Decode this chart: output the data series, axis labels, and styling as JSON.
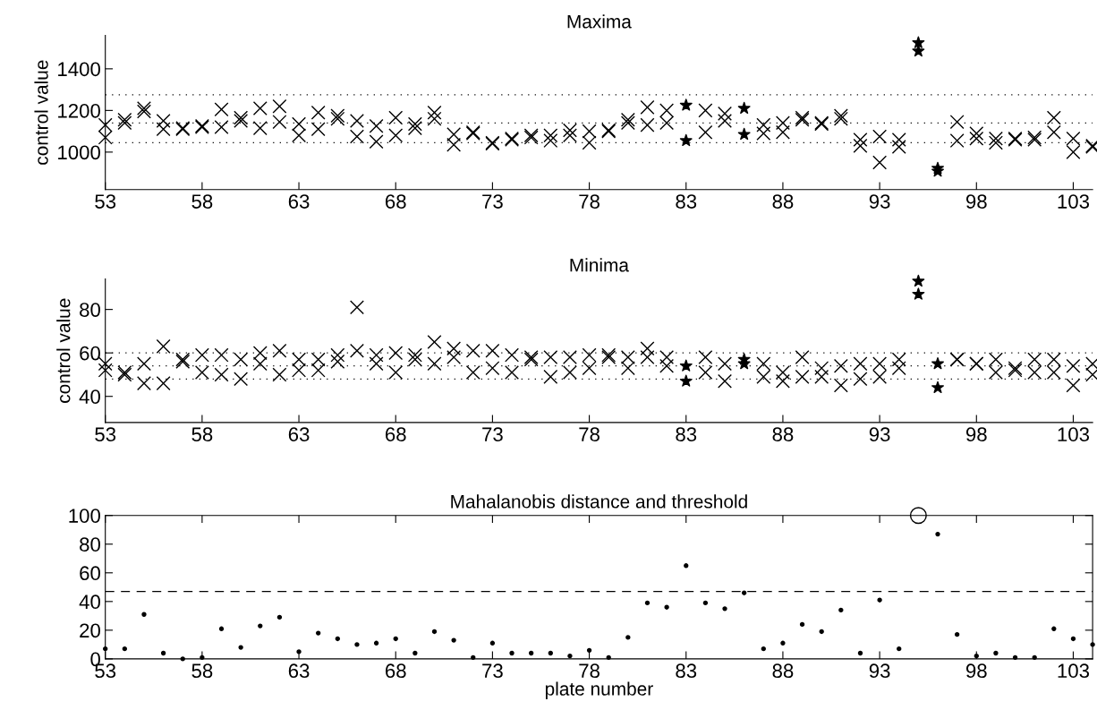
{
  "chart_data": [
    {
      "type": "scatter",
      "title": "Maxima",
      "ylabel": "control value",
      "xlim": [
        53,
        104
      ],
      "xticks": [
        53,
        58,
        63,
        68,
        73,
        78,
        83,
        88,
        93,
        98,
        103
      ],
      "ylim": [
        820,
        1560
      ],
      "yticks": [
        1000,
        1200,
        1400
      ],
      "ref_lines": [
        {
          "axis": "y",
          "value": 1275,
          "line_style": "dotted"
        },
        {
          "axis": "y",
          "value": 1140,
          "line_style": "dotted"
        },
        {
          "axis": "y",
          "value": 1045,
          "line_style": "dotted"
        }
      ],
      "series": [
        {
          "marker": "cross",
          "color": "#000000",
          "x": [
            53,
            53,
            54,
            54,
            55,
            55,
            56,
            56,
            57,
            57,
            58,
            58,
            59,
            59,
            60,
            60,
            61,
            61,
            62,
            62,
            63,
            63,
            64,
            64,
            65,
            65,
            66,
            66,
            67,
            67,
            68,
            68,
            69,
            69,
            70,
            70,
            71,
            71,
            72,
            72,
            73,
            73,
            74,
            74,
            75,
            75,
            76,
            76,
            77,
            77,
            78,
            78,
            79,
            79,
            80,
            80,
            81,
            81,
            82,
            82,
            84,
            84,
            85,
            85,
            87,
            87,
            88,
            88,
            89,
            89,
            90,
            90,
            91,
            91,
            92,
            92,
            93,
            93,
            94,
            94,
            97,
            97,
            98,
            98,
            99,
            99,
            100,
            100,
            101,
            101,
            102,
            102,
            103,
            103,
            104,
            104
          ],
          "values": [
            1130,
            1070,
            1155,
            1140,
            1210,
            1195,
            1150,
            1110,
            1115,
            1110,
            1125,
            1120,
            1205,
            1120,
            1165,
            1150,
            1210,
            1115,
            1220,
            1145,
            1135,
            1080,
            1190,
            1110,
            1175,
            1160,
            1150,
            1075,
            1125,
            1050,
            1165,
            1080,
            1135,
            1115,
            1190,
            1160,
            1085,
            1035,
            1095,
            1090,
            1045,
            1040,
            1065,
            1060,
            1080,
            1070,
            1080,
            1055,
            1105,
            1080,
            1100,
            1045,
            1105,
            1100,
            1155,
            1140,
            1215,
            1130,
            1200,
            1140,
            1200,
            1095,
            1185,
            1150,
            1130,
            1090,
            1140,
            1095,
            1165,
            1155,
            1140,
            1135,
            1175,
            1160,
            1060,
            1030,
            1075,
            950,
            1060,
            1025,
            1145,
            1055,
            1090,
            1065,
            1065,
            1045,
            1065,
            1060,
            1070,
            1060,
            1165,
            1095,
            1065,
            1000,
            1030,
            1025
          ]
        },
        {
          "marker": "star",
          "color": "#000000",
          "x": [
            83,
            83,
            86,
            86,
            95,
            95,
            96,
            96
          ],
          "values": [
            1225,
            1055,
            1210,
            1085,
            1525,
            1485,
            922,
            908
          ]
        }
      ]
    },
    {
      "type": "scatter",
      "title": "Minima",
      "ylabel": "control value",
      "xlim": [
        53,
        104
      ],
      "xticks": [
        53,
        58,
        63,
        68,
        73,
        78,
        83,
        88,
        93,
        98,
        103
      ],
      "ylim": [
        28,
        94
      ],
      "yticks": [
        40,
        60,
        80
      ],
      "ref_lines": [
        {
          "axis": "y",
          "value": 60,
          "line_style": "dotted"
        },
        {
          "axis": "y",
          "value": 54,
          "line_style": "dotted"
        },
        {
          "axis": "y",
          "value": 48,
          "line_style": "dotted"
        }
      ],
      "series": [
        {
          "marker": "cross",
          "color": "#000000",
          "x": [
            53,
            53,
            54,
            54,
            55,
            55,
            56,
            56,
            57,
            57,
            58,
            58,
            59,
            59,
            60,
            60,
            61,
            61,
            62,
            62,
            63,
            63,
            64,
            64,
            65,
            65,
            66,
            66,
            67,
            67,
            68,
            68,
            69,
            69,
            70,
            70,
            71,
            71,
            72,
            72,
            73,
            73,
            74,
            74,
            75,
            75,
            76,
            76,
            77,
            77,
            78,
            78,
            79,
            79,
            80,
            80,
            81,
            81,
            82,
            82,
            84,
            84,
            85,
            85,
            87,
            87,
            88,
            88,
            89,
            89,
            90,
            90,
            91,
            91,
            92,
            92,
            93,
            93,
            94,
            94,
            97,
            97,
            98,
            98,
            99,
            99,
            100,
            100,
            101,
            101,
            102,
            102,
            103,
            103,
            104,
            104
          ],
          "values": [
            55,
            52,
            51,
            50,
            55,
            46,
            63,
            46,
            57,
            56,
            59,
            51,
            59,
            50,
            57,
            48,
            60,
            55,
            61,
            50,
            57,
            52,
            57,
            52,
            59,
            56,
            81,
            61,
            59,
            55,
            60,
            51,
            59,
            57,
            65,
            55,
            62,
            58,
            61,
            51,
            61,
            53,
            59,
            51,
            58,
            57,
            58,
            49,
            58,
            51,
            59,
            53,
            59,
            58,
            58,
            53,
            62,
            58,
            58,
            54,
            58,
            51,
            55,
            47,
            55,
            49,
            51,
            47,
            58,
            49,
            53,
            49,
            54,
            45,
            55,
            48,
            55,
            49,
            57,
            53,
            57,
            57,
            55,
            55,
            57,
            51,
            53,
            52,
            57,
            51,
            57,
            51,
            54,
            45,
            55,
            50
          ]
        },
        {
          "marker": "star",
          "color": "#000000",
          "x": [
            83,
            83,
            86,
            86,
            95,
            95,
            96,
            96
          ],
          "values": [
            54,
            47,
            57,
            55,
            93,
            87,
            55,
            44
          ]
        }
      ]
    },
    {
      "type": "scatter",
      "title": "Mahalanobis distance and threshold",
      "xlabel": "plate number",
      "xlim": [
        53,
        104
      ],
      "xticks": [
        53,
        58,
        63,
        68,
        73,
        78,
        83,
        88,
        93,
        98,
        103
      ],
      "ylim": [
        0,
        100
      ],
      "yticks": [
        0,
        20,
        40,
        60,
        80,
        100
      ],
      "ref_lines": [
        {
          "axis": "y",
          "value": 47,
          "line_style": "dashed"
        }
      ],
      "series": [
        {
          "marker": "point",
          "color": "#000000",
          "x": [
            53,
            54,
            55,
            56,
            57,
            58,
            59,
            60,
            61,
            62,
            63,
            64,
            65,
            66,
            67,
            68,
            69,
            70,
            71,
            72,
            73,
            74,
            75,
            76,
            77,
            78,
            79,
            80,
            81,
            82,
            83,
            84,
            85,
            86,
            87,
            88,
            89,
            90,
            91,
            92,
            93,
            94,
            96,
            97,
            98,
            99,
            100,
            101,
            102,
            103,
            104
          ],
          "values": [
            7,
            7,
            31,
            4,
            0,
            1,
            21,
            8,
            23,
            29,
            5,
            18,
            14,
            10,
            11,
            14,
            4,
            19,
            13,
            1,
            11,
            4,
            4,
            4,
            2,
            6,
            1,
            15,
            39,
            36,
            65,
            39,
            35,
            46,
            7,
            11,
            24,
            19,
            34,
            4,
            41,
            7,
            87,
            17,
            2,
            4,
            1,
            1,
            21,
            14,
            10
          ]
        },
        {
          "marker": "circle",
          "color": "#000000",
          "x": [
            95
          ],
          "values": [
            100
          ]
        }
      ]
    }
  ]
}
